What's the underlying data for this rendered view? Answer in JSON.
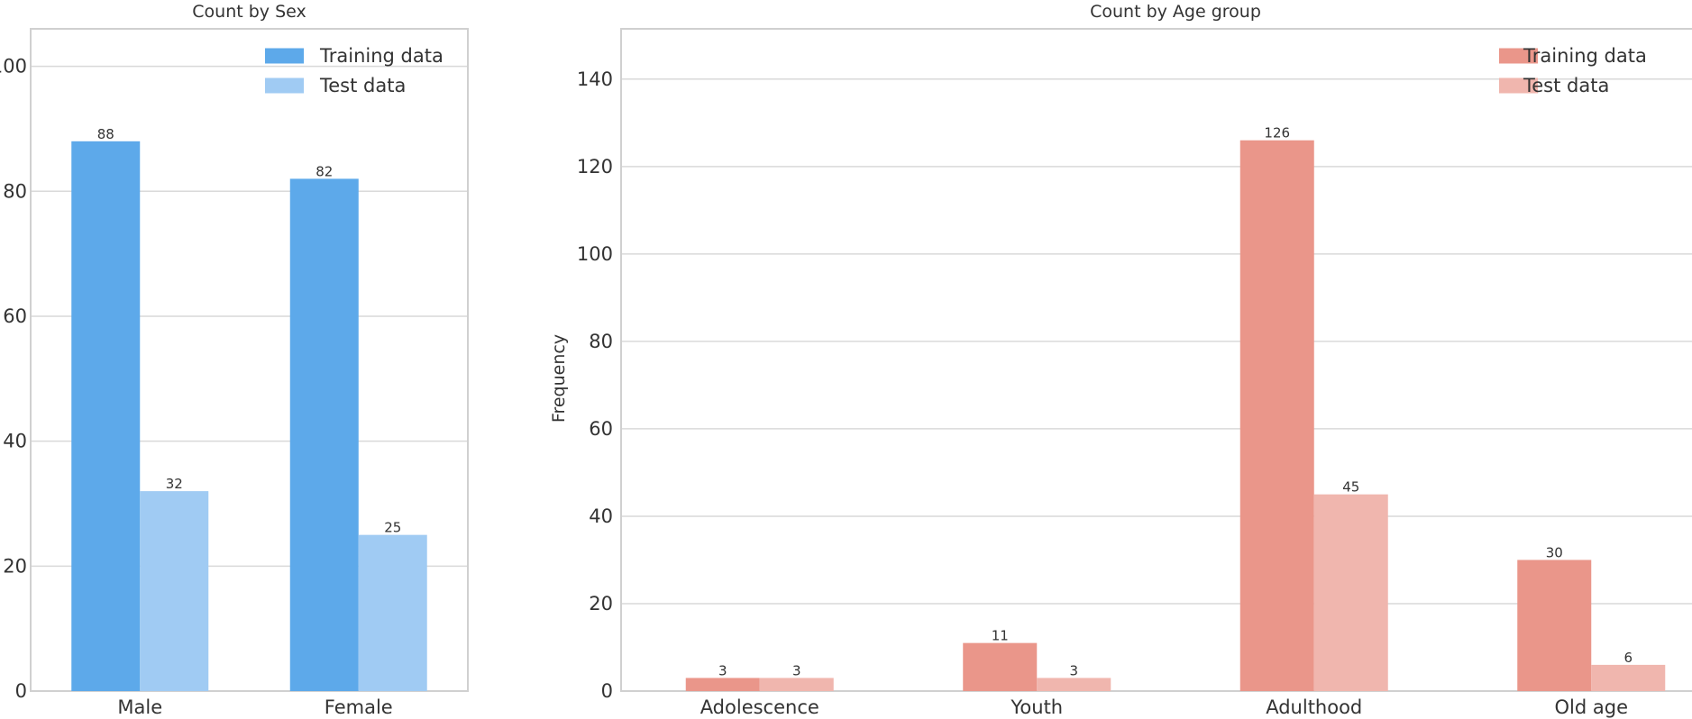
{
  "colors": {
    "sex_train": "#5da9ea",
    "sex_test": "#a0cbf3",
    "age_train": "#ea968a",
    "age_test": "#f0b6ae",
    "grid": "#d9d9d9",
    "frame": "#d0d0d0"
  },
  "chart_data": [
    {
      "type": "bar",
      "title": "Count by Sex",
      "xlabel": "",
      "ylabel": "",
      "categories": [
        "Male",
        "Female"
      ],
      "series": [
        {
          "name": "Training data",
          "values": [
            88,
            82
          ]
        },
        {
          "name": "Test data",
          "values": [
            32,
            25
          ]
        }
      ],
      "ylim": [
        0,
        106
      ],
      "yticks": [
        "0",
        "20",
        "40",
        "60",
        "80",
        "100"
      ],
      "grid": true,
      "legend": "top-right"
    },
    {
      "type": "bar",
      "title": "Count by Age group",
      "xlabel": "",
      "ylabel": "Frequency",
      "categories": [
        "Adolescence",
        "Youth",
        "Adulthood",
        "Old age"
      ],
      "series": [
        {
          "name": "Training data",
          "values": [
            3,
            11,
            126,
            30
          ]
        },
        {
          "name": "Test data",
          "values": [
            3,
            3,
            45,
            6
          ]
        }
      ],
      "ylim": [
        0,
        151.5
      ],
      "yticks": [
        "0",
        "20",
        "40",
        "60",
        "80",
        "100",
        "120",
        "140"
      ],
      "grid": true,
      "legend": "top-right"
    }
  ]
}
